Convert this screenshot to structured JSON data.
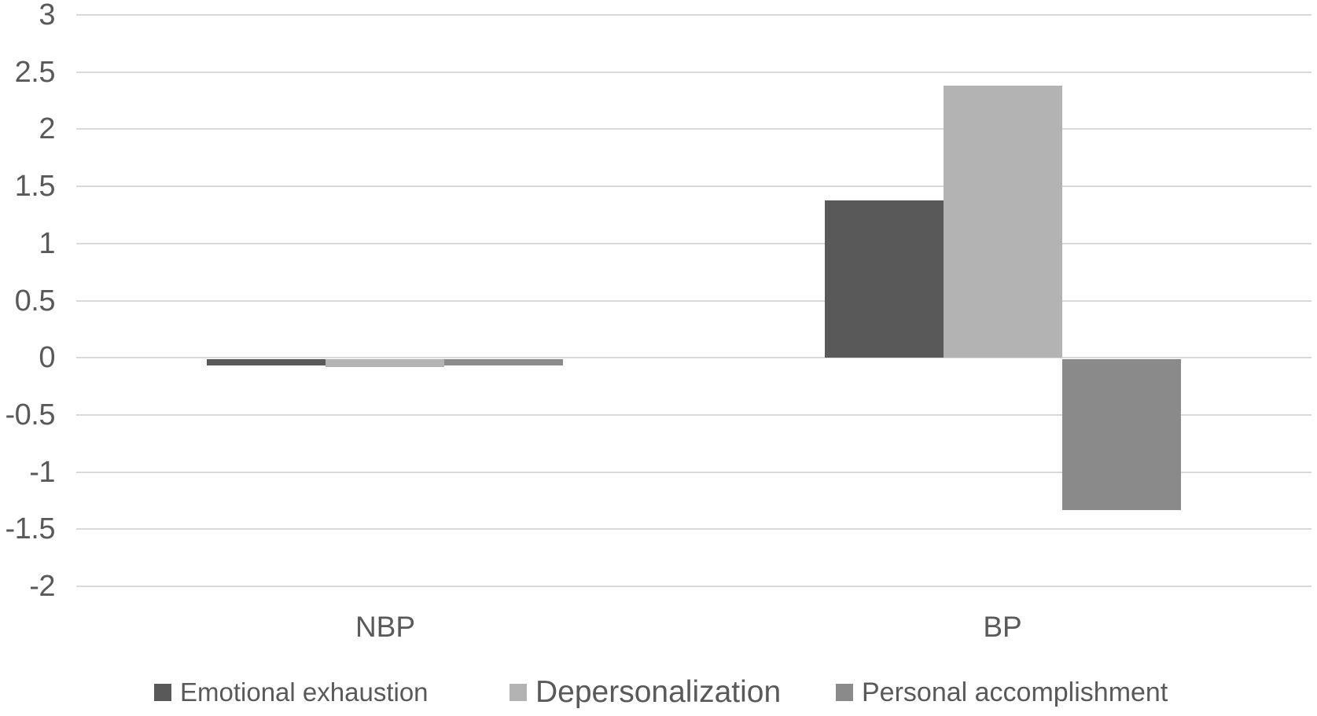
{
  "chart_data": {
    "type": "bar",
    "title": "",
    "xlabel": "",
    "ylabel": "",
    "categories": [
      "NBP",
      "BP"
    ],
    "series": [
      {
        "name": "Emotional exhaustion",
        "color": "#595959",
        "values": [
          -0.07,
          1.38
        ]
      },
      {
        "name": "Depersonalization",
        "color": "#b3b3b3",
        "values": [
          -0.08,
          2.38
        ]
      },
      {
        "name": "Personal accomplishment",
        "color": "#8a8a8a",
        "values": [
          -0.07,
          -1.33
        ]
      }
    ],
    "ylim": [
      -2,
      3
    ],
    "ytick_step": 0.5,
    "ytick_labels": [
      "3",
      "2.5",
      "2",
      "1.5",
      "1",
      "0.5",
      "0",
      "-0.5",
      "-1",
      "-1.5",
      "-2"
    ],
    "grid": true,
    "legend_position": "bottom",
    "colors": {
      "gridline": "#d9d9d9",
      "axis_text": "#595959",
      "background": "#ffffff"
    }
  }
}
